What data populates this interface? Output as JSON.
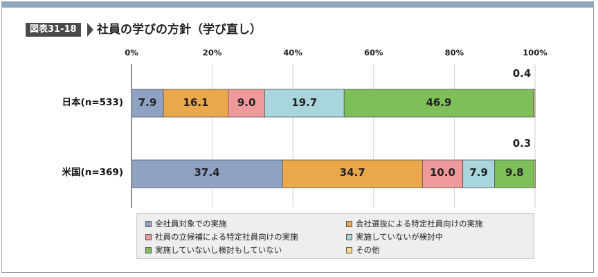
{
  "header": {
    "figure_label": "図表31-18",
    "title": "社員の学びの方針（学び直し）"
  },
  "chart_data": {
    "type": "bar",
    "orientation": "horizontal",
    "stacked": true,
    "x_ticks": [
      "0%",
      "20%",
      "40%",
      "60%",
      "80%",
      "100%"
    ],
    "xlim": [
      0,
      100
    ],
    "grid": true,
    "legend_position": "bottom",
    "categories": [
      "日本(n=533)",
      "米国(n=369)"
    ],
    "series": [
      {
        "name": "全社員対象での実施",
        "color": "#8fa2c4",
        "values": [
          7.9,
          37.4
        ]
      },
      {
        "name": "会社選抜による特定社員向けの実施",
        "color": "#eaa84a",
        "values": [
          16.1,
          34.7
        ]
      },
      {
        "name": "社員の立候補による特定社員向けの実施",
        "color": "#f0999a",
        "values": [
          9.0,
          10.0
        ]
      },
      {
        "name": "実施していないが検討中",
        "color": "#a9d6dc",
        "values": [
          19.7,
          7.9
        ]
      },
      {
        "name": "実施していないし検討もしていない",
        "color": "#7fbf5a",
        "values": [
          46.9,
          9.8
        ]
      },
      {
        "name": "その他",
        "color": "#f5d98c",
        "values": [
          0.4,
          0.3
        ]
      }
    ],
    "data_labels": [
      [
        "7.9",
        "16.1",
        "9.0",
        "19.7",
        "46.9",
        "0.4"
      ],
      [
        "37.4",
        "34.7",
        "10.0",
        "7.9",
        "9.8",
        "0.3"
      ]
    ]
  }
}
